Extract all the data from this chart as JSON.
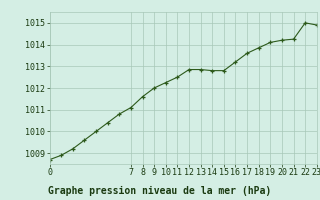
{
  "x": [
    0,
    1,
    2,
    3,
    4,
    5,
    6,
    7,
    8,
    9,
    10,
    11,
    12,
    13,
    14,
    15,
    16,
    17,
    18,
    19,
    20,
    21,
    22,
    23
  ],
  "y": [
    1008.7,
    1008.9,
    1009.2,
    1009.6,
    1010.0,
    1010.4,
    1010.8,
    1011.1,
    1011.6,
    1012.0,
    1012.25,
    1012.5,
    1012.85,
    1012.85,
    1012.8,
    1012.8,
    1013.2,
    1013.6,
    1013.85,
    1014.1,
    1014.2,
    1014.25,
    1015.0,
    1014.9
  ],
  "xlim": [
    0,
    23
  ],
  "ylim": [
    1008.5,
    1015.5
  ],
  "yticks": [
    1009,
    1010,
    1011,
    1012,
    1013,
    1014,
    1015
  ],
  "xticks": [
    0,
    7,
    8,
    9,
    10,
    11,
    12,
    13,
    14,
    15,
    16,
    17,
    18,
    19,
    20,
    21,
    22,
    23
  ],
  "line_color": "#2d5a1b",
  "marker_color": "#2d5a1b",
  "bg_color": "#d4eee4",
  "grid_color": "#a8c8b8",
  "title": "Graphe pression niveau de la mer (hPa)",
  "title_color": "#1a3a10",
  "title_fontsize": 7.0,
  "tick_fontsize": 6.0
}
